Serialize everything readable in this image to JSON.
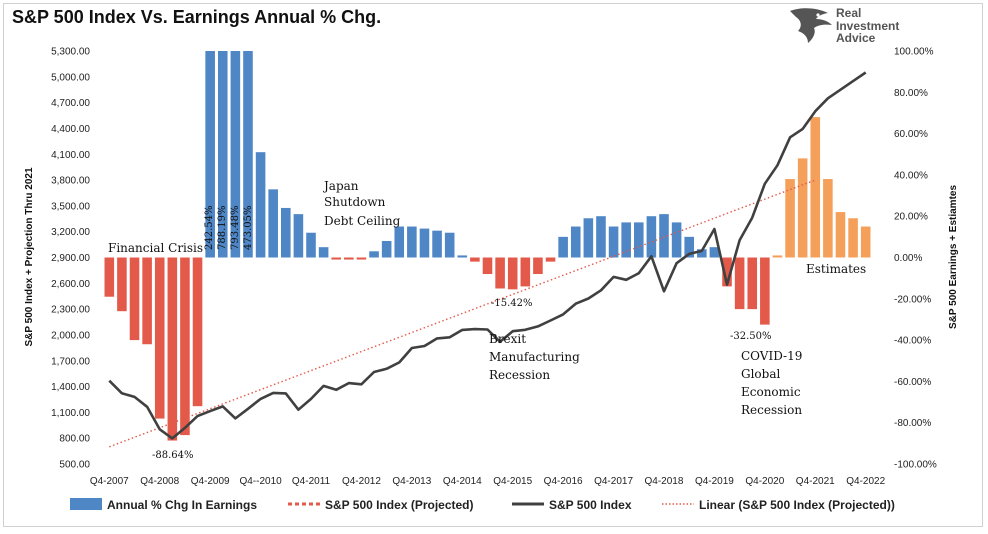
{
  "title": "S&P 500 Index Vs. Earnings Annual % Chg.",
  "logo": {
    "line1": "Real",
    "line2": "Investment",
    "line3": "Advice",
    "icon": "eagle-icon",
    "color": "#555555"
  },
  "chart_data": {
    "type": "bar",
    "title": "S&P 500 Index Vs. Earnings Annual % Chg.",
    "ylabel_left": "S&P 500 Index + Projection Thru 2021",
    "ylabel_right": "S&P 500 Earnings + Estiamtes",
    "ylim_left": [
      500,
      5300
    ],
    "ylim_right": [
      -100,
      100
    ],
    "yticks_left": [
      "5,300.00",
      "5,000.00",
      "4,700.00",
      "4,400.00",
      "4,100.00",
      "3,800.00",
      "3,500.00",
      "3,200.00",
      "2,900.00",
      "2,600.00",
      "2,300.00",
      "2,000.00",
      "1,700.00",
      "1,400.00",
      "1,100.00",
      "800.00",
      "500.00"
    ],
    "yticks_right": [
      "100.00%",
      "80.00%",
      "60.00%",
      "40.00%",
      "20.00%",
      "0.00%",
      "-20.00%",
      "-40.00%",
      "-60.00%",
      "-80.00%",
      "-100.00%"
    ],
    "xticks": [
      {
        "i": 0,
        "label": "Q4-2007"
      },
      {
        "i": 4,
        "label": "Q4-2008"
      },
      {
        "i": 8,
        "label": "Q4-2009"
      },
      {
        "i": 12,
        "label": "Q4--2010"
      },
      {
        "i": 16,
        "label": "Q4-2011"
      },
      {
        "i": 20,
        "label": "Q4-2012"
      },
      {
        "i": 24,
        "label": "Q4-2013"
      },
      {
        "i": 28,
        "label": "Q4-2014"
      },
      {
        "i": 32,
        "label": "Q4-2015"
      },
      {
        "i": 36,
        "label": "Q4-2016"
      },
      {
        "i": 40,
        "label": "Q4-2017"
      },
      {
        "i": 44,
        "label": "Q4-2018"
      },
      {
        "i": 48,
        "label": "Q4-2019"
      },
      {
        "i": 52,
        "label": "Q4-2020"
      },
      {
        "i": 56,
        "label": "Q4-2021"
      },
      {
        "i": 60,
        "label": "Q4-2022"
      }
    ],
    "colors": {
      "negative": "#e35a4b",
      "positive": "#4f86c6",
      "estimates": "#f5a05a",
      "index": "#404040",
      "projected": "#e35a4b",
      "linear": "#e35a4b"
    },
    "earnings_pct_chg": [
      -19,
      -26,
      -40,
      -42,
      -78,
      -88.64,
      -86,
      -72,
      242.54,
      788.19,
      793.48,
      473.05,
      51,
      33,
      24,
      21,
      12,
      5,
      -1,
      -1,
      -1,
      3,
      8,
      15,
      15,
      14,
      13,
      12,
      1,
      -2,
      -8,
      -15,
      -15.42,
      -14,
      -8,
      -2,
      10,
      15,
      19,
      20,
      15,
      17,
      17,
      20,
      21,
      17,
      10,
      4,
      5,
      -14,
      -25,
      -25,
      -32.5,
      1,
      38,
      48,
      68,
      38,
      22,
      19,
      15
    ],
    "estimates_from_index": 53,
    "sp500_index": [
      1468,
      1322,
      1280,
      1165,
      903,
      797,
      919,
      1057,
      1115,
      1169,
      1030,
      1141,
      1257,
      1326,
      1320,
      1131,
      1257,
      1408,
      1362,
      1440,
      1426,
      1569,
      1606,
      1681,
      1848,
      1872,
      1960,
      1972,
      2059,
      2068,
      2063,
      1920,
      2044,
      2060,
      2099,
      2168,
      2239,
      2363,
      2423,
      2519,
      2674,
      2641,
      2718,
      2914,
      2507,
      2834,
      2942,
      2977,
      3231,
      2585,
      3100,
      3363,
      3756,
      3973,
      4297,
      4395,
      4600,
      4750,
      4850,
      4950,
      5050
    ],
    "sp500_index_projected": [],
    "linear_trend": {
      "start": 700,
      "end": 3800,
      "from_index": 0,
      "to_index": 56
    },
    "annotations": {
      "financial_crisis": "Financial Crisis",
      "japan": "Japan",
      "shutdown": "Shutdown",
      "debt_ceiling": "Debt Ceiling",
      "brexit": "Brexit",
      "manufacturing": "Manufacturing",
      "recession1": "Recession",
      "covid": "COVID-19",
      "global": "Global",
      "economic": "Economic",
      "recession2": "Recession",
      "estimates": "Estimates",
      "low_2008": "-88.64%",
      "low_2015": "-15.42%",
      "low_2020": "-32.50%",
      "bar_2009_a": "242.54%",
      "bar_2009_b": "788.19%",
      "bar_2009_c": "793.48%",
      "bar_2009_d": "473.05%"
    },
    "legend": [
      {
        "key": "bar",
        "label": "Annual % Chg In Earnings"
      },
      {
        "key": "dash",
        "label": "S&P 500 Index (Projected)"
      },
      {
        "key": "line",
        "label": "S&P 500 Index"
      },
      {
        "key": "dot",
        "label": "Linear (S&P 500 Index (Projected))"
      }
    ]
  }
}
